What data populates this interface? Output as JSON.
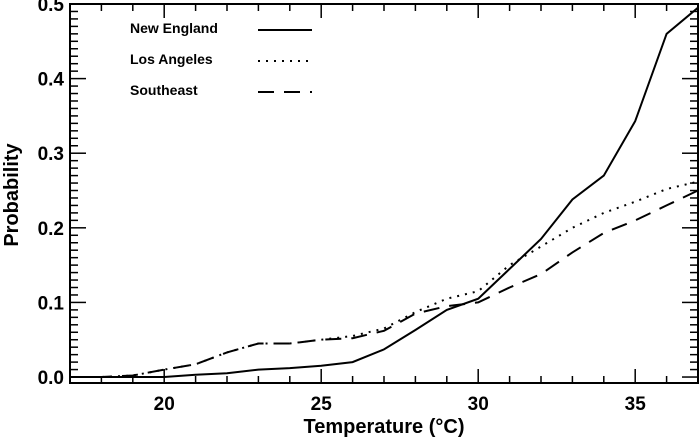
{
  "chart_data": {
    "type": "line",
    "title": "",
    "xlabel": "Temperature (°C)",
    "ylabel": "Probability",
    "xlim": [
      17,
      37
    ],
    "ylim": [
      -0.008,
      0.5
    ],
    "xticks": [
      20,
      25,
      30,
      35
    ],
    "xtick_labels": [
      "20",
      "25",
      "30",
      "35"
    ],
    "yticks": [
      0.0,
      0.1,
      0.2,
      0.3,
      0.4,
      0.5
    ],
    "ytick_labels": [
      "0.0",
      "0.1",
      "0.2",
      "0.3",
      "0.4",
      "0.5"
    ],
    "grid": false,
    "legend_position": "top-left",
    "x": [
      17,
      18,
      19,
      20,
      21,
      22,
      23,
      24,
      25,
      26,
      27,
      28,
      29,
      30,
      31,
      32,
      33,
      34,
      35,
      36,
      37
    ],
    "series": [
      {
        "name": "New England",
        "style": "solid",
        "values": [
          0,
          0,
          0,
          0,
          0.003,
          0.005,
          0.01,
          0.012,
          0.015,
          0.02,
          0.037,
          0.063,
          0.09,
          0.105,
          0.145,
          0.185,
          0.238,
          0.27,
          0.343,
          0.46,
          0.495
        ]
      },
      {
        "name": "Los Angeles",
        "style": "dotted",
        "values": [
          0,
          0,
          0.002,
          0.01,
          0.017,
          0.033,
          0.045,
          0.045,
          0.05,
          0.055,
          0.065,
          0.087,
          0.105,
          0.115,
          0.15,
          0.175,
          0.2,
          0.22,
          0.235,
          0.252,
          0.262
        ]
      },
      {
        "name": "Southeast",
        "style": "dashed",
        "values": [
          0,
          0,
          0.002,
          0.01,
          0.017,
          0.033,
          0.045,
          0.045,
          0.05,
          0.052,
          0.062,
          0.085,
          0.095,
          0.1,
          0.12,
          0.138,
          0.167,
          0.193,
          0.21,
          0.23,
          0.25
        ]
      }
    ]
  }
}
